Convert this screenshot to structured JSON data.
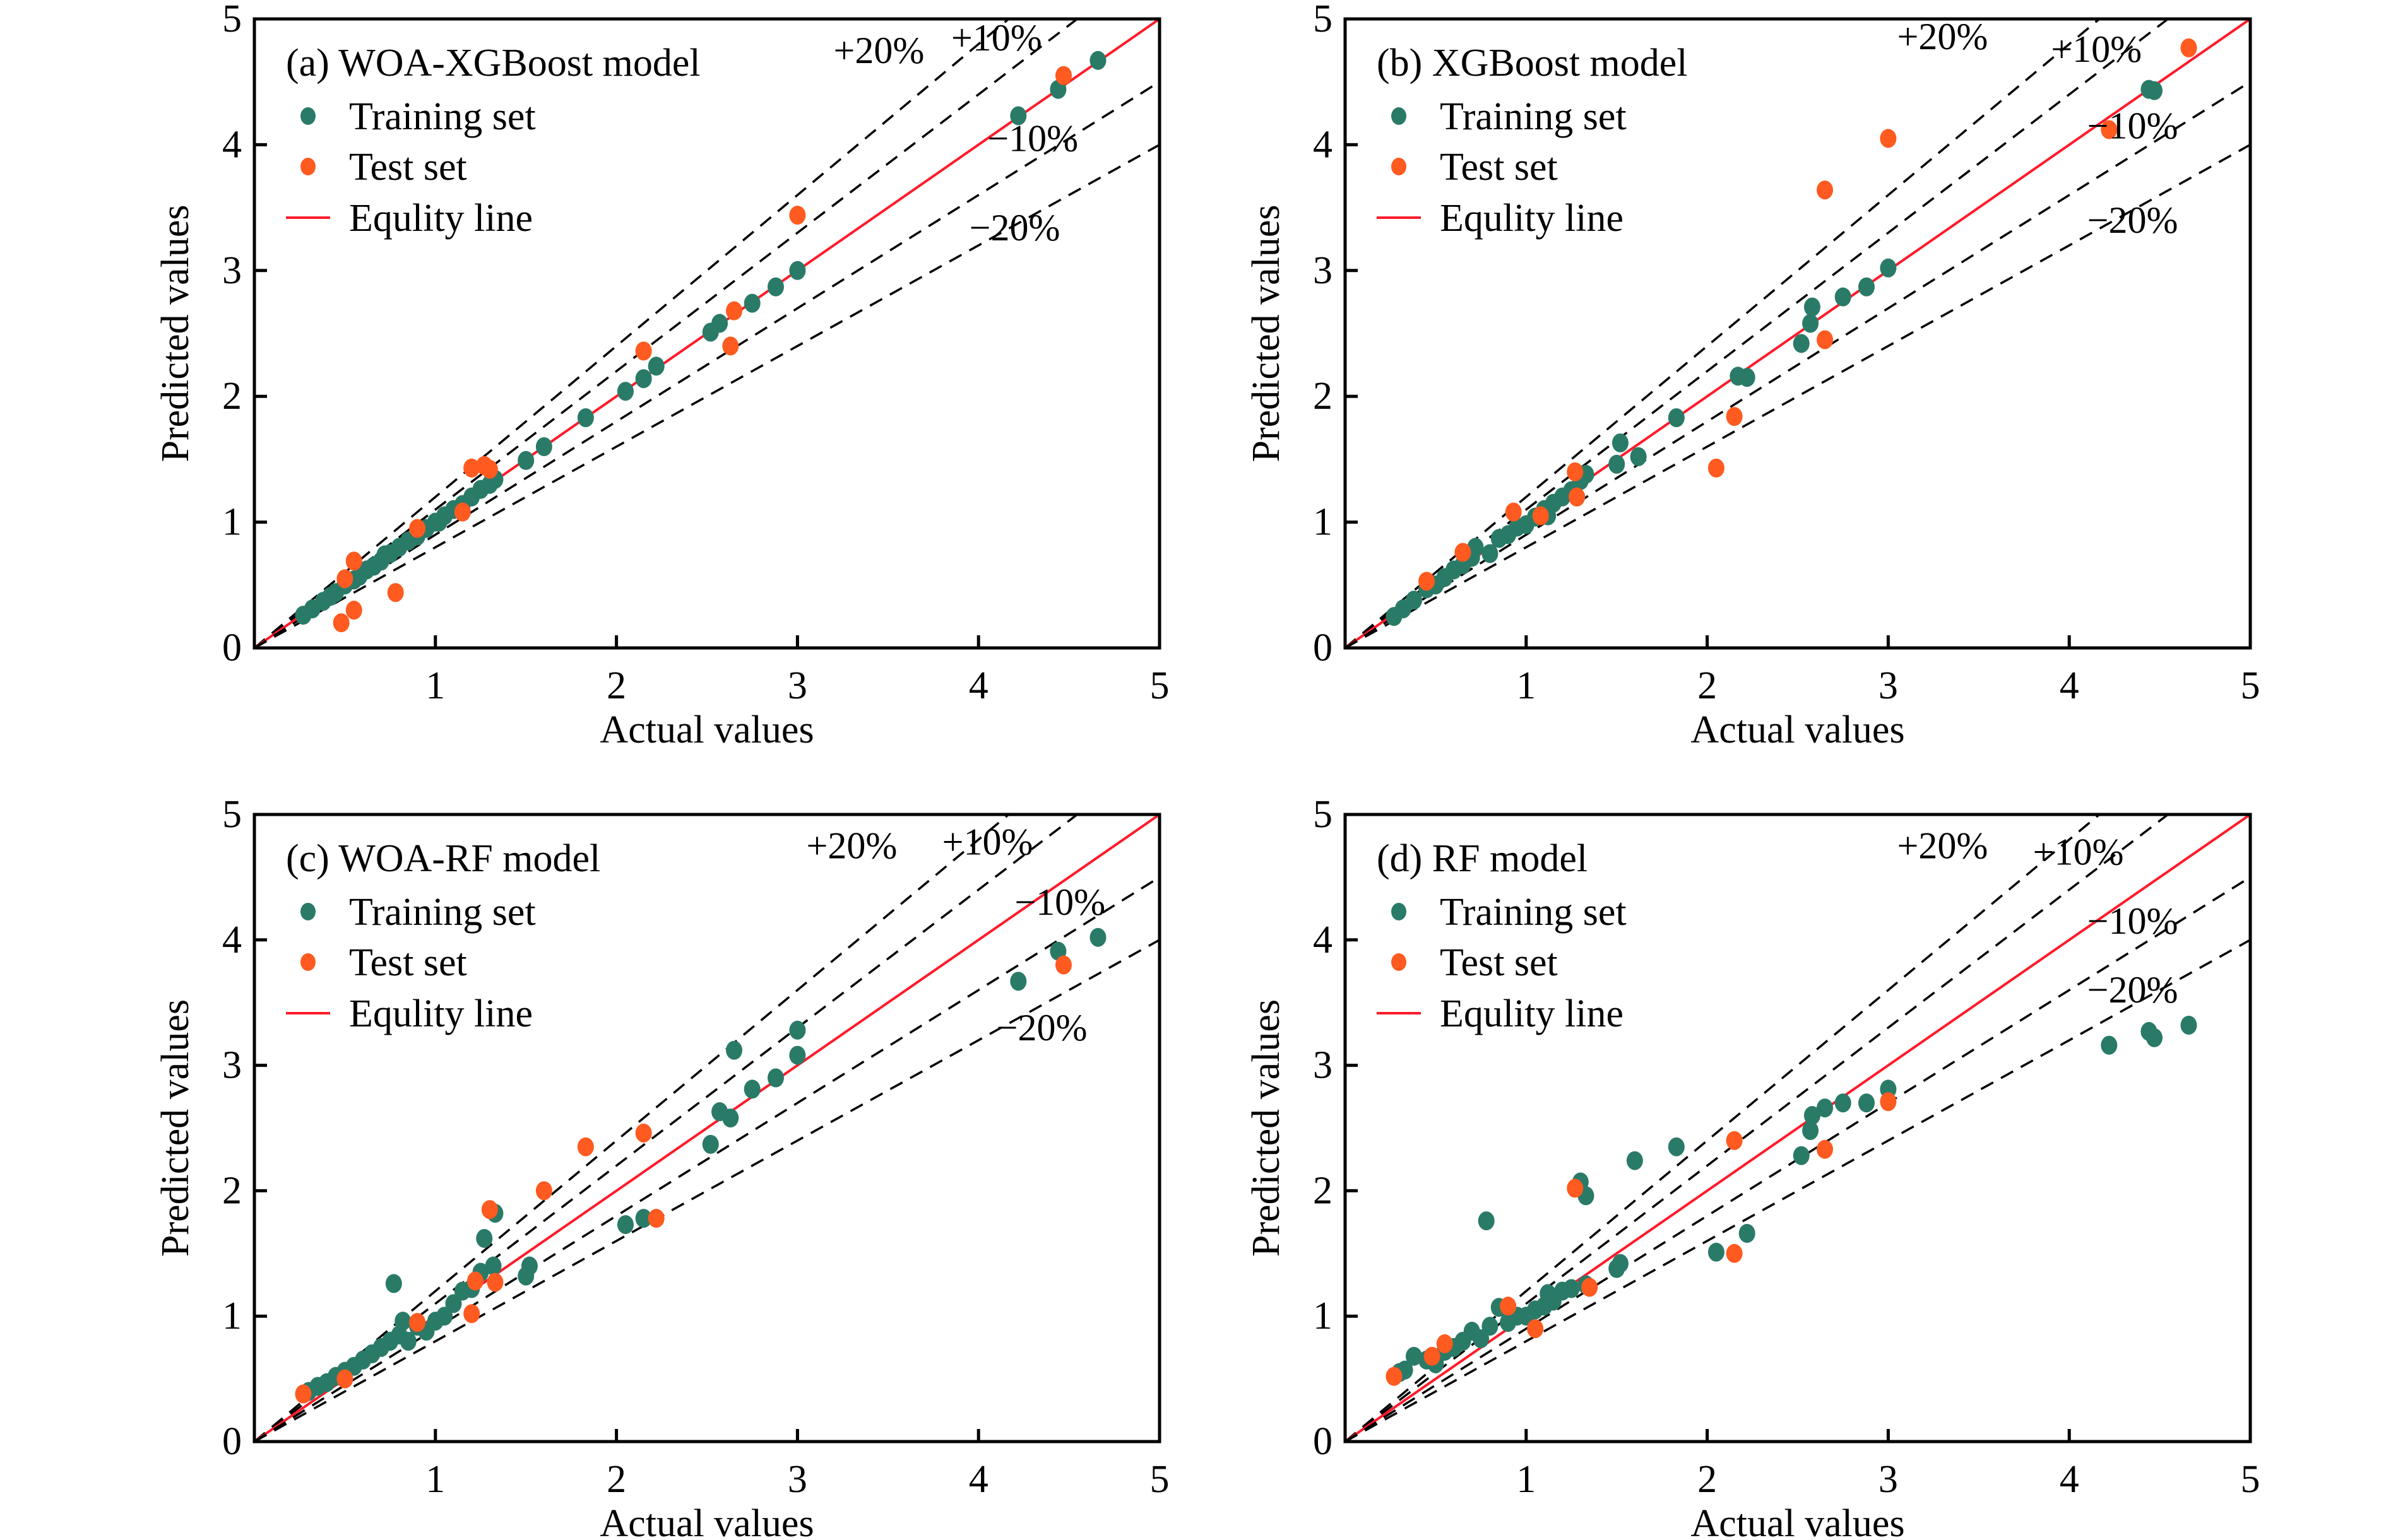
{
  "figure": {
    "colors": {
      "training": "#2a7a68",
      "test": "#ff5a1f",
      "equity": "#ff1a2a",
      "band": "#000000",
      "axis": "#000000"
    },
    "legend": {
      "training_label": "Training set",
      "test_label": "Test set",
      "equity_label": "Equlity line"
    }
  },
  "chart_data": [
    {
      "type": "scatter",
      "id": "a",
      "title": "(a) WOA-XGBoost model",
      "xlabel": "Actual values",
      "ylabel": "Predicted values",
      "xlim": [
        0,
        5
      ],
      "ylim": [
        0,
        5
      ],
      "xticks": [
        "1",
        "2",
        "3",
        "4",
        "5"
      ],
      "yticks": [
        "0",
        "1",
        "2",
        "3",
        "4",
        "5"
      ],
      "grid": false,
      "legend_position": "top-left",
      "reference_lines": [
        {
          "label": "+20%",
          "slope": 1.2
        },
        {
          "label": "+10%",
          "slope": 1.1
        },
        {
          "label": "Equity line",
          "slope": 1.0
        },
        {
          "label": "−10%",
          "slope": 0.9
        },
        {
          "label": "−20%",
          "slope": 0.8
        }
      ],
      "band_labels": [
        "+20%",
        "+10%",
        "−10%",
        "−20%"
      ],
      "series": [
        {
          "name": "Training set",
          "points": [
            [
              0.27,
              0.26
            ],
            [
              0.32,
              0.31
            ],
            [
              0.38,
              0.37
            ],
            [
              0.42,
              0.41
            ],
            [
              0.45,
              0.44
            ],
            [
              0.5,
              0.5
            ],
            [
              0.55,
              0.54
            ],
            [
              0.58,
              0.57
            ],
            [
              0.62,
              0.62
            ],
            [
              0.66,
              0.65
            ],
            [
              0.7,
              0.69
            ],
            [
              0.72,
              0.74
            ],
            [
              0.75,
              0.75
            ],
            [
              0.8,
              0.8
            ],
            [
              0.85,
              0.85
            ],
            [
              0.9,
              0.89
            ],
            [
              0.95,
              0.95
            ],
            [
              1.0,
              1.0
            ],
            [
              1.02,
              1.0
            ],
            [
              1.05,
              1.05
            ],
            [
              1.1,
              1.1
            ],
            [
              1.15,
              1.14
            ],
            [
              1.2,
              1.2
            ],
            [
              1.25,
              1.26
            ],
            [
              1.3,
              1.3
            ],
            [
              1.33,
              1.34
            ],
            [
              1.5,
              1.49
            ],
            [
              1.6,
              1.6
            ],
            [
              1.83,
              1.83
            ],
            [
              2.05,
              2.04
            ],
            [
              2.15,
              2.14
            ],
            [
              2.22,
              2.24
            ],
            [
              2.52,
              2.51
            ],
            [
              2.57,
              2.58
            ],
            [
              2.75,
              2.74
            ],
            [
              2.88,
              2.87
            ],
            [
              3.0,
              3.0
            ],
            [
              4.22,
              4.23
            ],
            [
              4.44,
              4.44
            ],
            [
              4.66,
              4.67
            ]
          ]
        },
        {
          "name": "Test set",
          "points": [
            [
              0.48,
              0.2
            ],
            [
              0.55,
              0.3
            ],
            [
              0.5,
              0.55
            ],
            [
              0.55,
              0.69
            ],
            [
              0.78,
              0.44
            ],
            [
              0.9,
              0.95
            ],
            [
              1.15,
              1.08
            ],
            [
              1.2,
              1.43
            ],
            [
              1.27,
              1.45
            ],
            [
              1.3,
              1.42
            ],
            [
              2.15,
              2.36
            ],
            [
              2.63,
              2.4
            ],
            [
              2.65,
              2.68
            ],
            [
              3.0,
              3.44
            ],
            [
              4.47,
              4.55
            ]
          ]
        }
      ]
    },
    {
      "type": "scatter",
      "id": "b",
      "title": "(b) XGBoost model",
      "xlabel": "Actual values",
      "ylabel": "Predicted values",
      "xlim": [
        0,
        5
      ],
      "ylim": [
        0,
        5
      ],
      "xticks": [
        "1",
        "2",
        "3",
        "4",
        "5"
      ],
      "yticks": [
        "0",
        "1",
        "2",
        "3",
        "4",
        "5"
      ],
      "grid": false,
      "legend_position": "top-left",
      "reference_lines": [
        {
          "label": "+20%",
          "slope": 1.2
        },
        {
          "label": "+10%",
          "slope": 1.1
        },
        {
          "label": "Equity line",
          "slope": 1.0
        },
        {
          "label": "−10%",
          "slope": 0.9
        },
        {
          "label": "−20%",
          "slope": 0.8
        }
      ],
      "band_labels": [
        "+20%",
        "+10%",
        "−10%",
        "−20%"
      ],
      "series": [
        {
          "name": "Training set",
          "points": [
            [
              0.27,
              0.25
            ],
            [
              0.32,
              0.31
            ],
            [
              0.38,
              0.38
            ],
            [
              0.45,
              0.47
            ],
            [
              0.5,
              0.5
            ],
            [
              0.55,
              0.56
            ],
            [
              0.6,
              0.62
            ],
            [
              0.65,
              0.66
            ],
            [
              0.7,
              0.72
            ],
            [
              0.72,
              0.8
            ],
            [
              0.8,
              0.75
            ],
            [
              0.85,
              0.87
            ],
            [
              0.9,
              0.9
            ],
            [
              0.95,
              0.96
            ],
            [
              1.0,
              0.98
            ],
            [
              1.05,
              1.04
            ],
            [
              1.1,
              1.1
            ],
            [
              1.12,
              1.05
            ],
            [
              1.15,
              1.15
            ],
            [
              1.2,
              1.2
            ],
            [
              1.25,
              1.25
            ],
            [
              1.28,
              1.2
            ],
            [
              1.3,
              1.33
            ],
            [
              1.33,
              1.38
            ],
            [
              1.5,
              1.46
            ],
            [
              1.52,
              1.63
            ],
            [
              1.62,
              1.52
            ],
            [
              1.83,
              1.83
            ],
            [
              2.17,
              2.16
            ],
            [
              2.22,
              2.15
            ],
            [
              2.52,
              2.42
            ],
            [
              2.57,
              2.58
            ],
            [
              2.58,
              2.71
            ],
            [
              2.75,
              2.79
            ],
            [
              2.88,
              2.87
            ],
            [
              3.0,
              3.02
            ],
            [
              4.44,
              4.44
            ],
            [
              4.47,
              4.43
            ]
          ]
        },
        {
          "name": "Test set",
          "points": [
            [
              0.45,
              0.53
            ],
            [
              0.65,
              0.76
            ],
            [
              0.93,
              1.08
            ],
            [
              1.08,
              1.05
            ],
            [
              1.27,
              1.4
            ],
            [
              1.28,
              1.2
            ],
            [
              2.05,
              1.43
            ],
            [
              2.15,
              1.84
            ],
            [
              2.65,
              2.45
            ],
            [
              2.65,
              3.64
            ],
            [
              3.0,
              4.05
            ],
            [
              4.22,
              4.12
            ],
            [
              4.66,
              4.77
            ]
          ]
        }
      ]
    },
    {
      "type": "scatter",
      "id": "c",
      "title": "(c) WOA-RF model",
      "xlabel": "Actual values",
      "ylabel": "Predicted values",
      "xlim": [
        0,
        5
      ],
      "ylim": [
        0,
        5
      ],
      "xticks": [
        "1",
        "2",
        "3",
        "4",
        "5"
      ],
      "yticks": [
        "0",
        "1",
        "2",
        "3",
        "4",
        "5"
      ],
      "grid": false,
      "legend_position": "top-left",
      "reference_lines": [
        {
          "label": "+20%",
          "slope": 1.2
        },
        {
          "label": "+10%",
          "slope": 1.1
        },
        {
          "label": "Equity line",
          "slope": 1.0
        },
        {
          "label": "−10%",
          "slope": 0.9
        },
        {
          "label": "−20%",
          "slope": 0.8
        }
      ],
      "band_labels": [
        "+20%",
        "+10%",
        "−10%",
        "−20%"
      ],
      "series": [
        {
          "name": "Training set",
          "points": [
            [
              0.3,
              0.4
            ],
            [
              0.35,
              0.44
            ],
            [
              0.4,
              0.47
            ],
            [
              0.45,
              0.52
            ],
            [
              0.5,
              0.56
            ],
            [
              0.55,
              0.6
            ],
            [
              0.6,
              0.65
            ],
            [
              0.65,
              0.7
            ],
            [
              0.7,
              0.75
            ],
            [
              0.75,
              0.8
            ],
            [
              0.77,
              1.26
            ],
            [
              0.8,
              0.85
            ],
            [
              0.82,
              0.96
            ],
            [
              0.85,
              0.8
            ],
            [
              0.9,
              0.92
            ],
            [
              0.95,
              0.88
            ],
            [
              1.0,
              0.96
            ],
            [
              1.05,
              1.0
            ],
            [
              1.1,
              1.1
            ],
            [
              1.15,
              1.2
            ],
            [
              1.2,
              1.22
            ],
            [
              1.25,
              1.35
            ],
            [
              1.27,
              1.62
            ],
            [
              1.32,
              1.4
            ],
            [
              1.33,
              1.82
            ],
            [
              1.5,
              1.32
            ],
            [
              1.52,
              1.4
            ],
            [
              2.05,
              1.73
            ],
            [
              2.15,
              1.78
            ],
            [
              2.52,
              2.37
            ],
            [
              2.57,
              2.63
            ],
            [
              2.63,
              2.58
            ],
            [
              2.65,
              3.12
            ],
            [
              2.75,
              2.81
            ],
            [
              2.88,
              2.9
            ],
            [
              3.0,
              3.08
            ],
            [
              3.0,
              3.28
            ],
            [
              4.22,
              3.67
            ],
            [
              4.44,
              3.91
            ],
            [
              4.66,
              4.02
            ]
          ]
        },
        {
          "name": "Test set",
          "points": [
            [
              0.27,
              0.38
            ],
            [
              0.5,
              0.5
            ],
            [
              0.9,
              0.95
            ],
            [
              1.2,
              1.02
            ],
            [
              1.22,
              1.28
            ],
            [
              1.3,
              1.85
            ],
            [
              1.33,
              1.27
            ],
            [
              1.6,
              2.0
            ],
            [
              1.83,
              2.35
            ],
            [
              2.15,
              2.46
            ],
            [
              2.22,
              1.78
            ],
            [
              4.47,
              3.8
            ]
          ]
        }
      ]
    },
    {
      "type": "scatter",
      "id": "d",
      "title": "(d) RF model",
      "xlabel": "Actual values",
      "ylabel": "Predicted values",
      "xlim": [
        0,
        5
      ],
      "ylim": [
        0,
        5
      ],
      "xticks": [
        "1",
        "2",
        "3",
        "4",
        "5"
      ],
      "yticks": [
        "0",
        "1",
        "2",
        "3",
        "4",
        "5"
      ],
      "grid": false,
      "legend_position": "top-left",
      "reference_lines": [
        {
          "label": "+20%",
          "slope": 1.2
        },
        {
          "label": "+10%",
          "slope": 1.1
        },
        {
          "label": "Equity line",
          "slope": 1.0
        },
        {
          "label": "−10%",
          "slope": 0.9
        },
        {
          "label": "−20%",
          "slope": 0.8
        }
      ],
      "band_labels": [
        "+20%",
        "+10%",
        "−10%",
        "−20%"
      ],
      "series": [
        {
          "name": "Training set",
          "points": [
            [
              0.3,
              0.55
            ],
            [
              0.33,
              0.57
            ],
            [
              0.38,
              0.68
            ],
            [
              0.45,
              0.65
            ],
            [
              0.5,
              0.62
            ],
            [
              0.55,
              0.72
            ],
            [
              0.6,
              0.75
            ],
            [
              0.65,
              0.8
            ],
            [
              0.7,
              0.88
            ],
            [
              0.75,
              0.82
            ],
            [
              0.78,
              1.76
            ],
            [
              0.8,
              0.92
            ],
            [
              0.85,
              1.07
            ],
            [
              0.9,
              0.95
            ],
            [
              0.95,
              1.0
            ],
            [
              1.0,
              1.0
            ],
            [
              1.05,
              1.05
            ],
            [
              1.1,
              1.08
            ],
            [
              1.12,
              1.18
            ],
            [
              1.15,
              1.12
            ],
            [
              1.2,
              1.2
            ],
            [
              1.25,
              1.22
            ],
            [
              1.3,
              2.07
            ],
            [
              1.33,
              1.96
            ],
            [
              1.33,
              1.25
            ],
            [
              1.5,
              1.38
            ],
            [
              1.52,
              1.42
            ],
            [
              1.6,
              2.24
            ],
            [
              1.83,
              2.35
            ],
            [
              2.05,
              1.51
            ],
            [
              2.22,
              1.66
            ],
            [
              2.52,
              2.28
            ],
            [
              2.57,
              2.48
            ],
            [
              2.58,
              2.6
            ],
            [
              2.65,
              2.66
            ],
            [
              2.75,
              2.7
            ],
            [
              2.88,
              2.7
            ],
            [
              3.0,
              2.81
            ],
            [
              4.22,
              3.16
            ],
            [
              4.44,
              3.27
            ],
            [
              4.47,
              3.22
            ],
            [
              4.66,
              3.32
            ]
          ]
        },
        {
          "name": "Test set",
          "points": [
            [
              0.27,
              0.52
            ],
            [
              0.48,
              0.68
            ],
            [
              0.55,
              0.78
            ],
            [
              0.9,
              1.08
            ],
            [
              1.05,
              0.9
            ],
            [
              1.27,
              2.02
            ],
            [
              1.35,
              1.23
            ],
            [
              2.15,
              1.5
            ],
            [
              2.15,
              2.4
            ],
            [
              2.65,
              2.33
            ],
            [
              3.0,
              2.71
            ]
          ]
        }
      ]
    }
  ]
}
